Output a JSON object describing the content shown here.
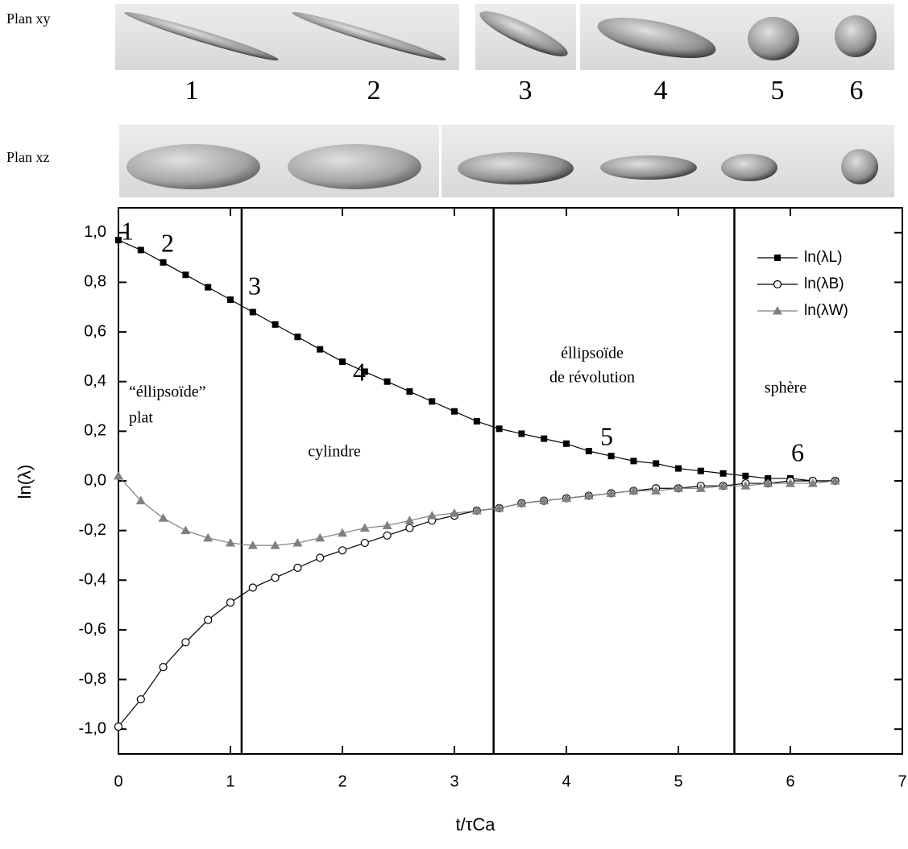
{
  "panels": {
    "rows": [
      "Plan xy",
      "Plan xz"
    ],
    "numbers": [
      "1",
      "2",
      "3",
      "4",
      "5",
      "6"
    ]
  },
  "chart_data": {
    "type": "scatter",
    "xlabel": "t/τCa",
    "ylabel": "ln(λ)",
    "xlim": [
      0,
      7
    ],
    "ylim": [
      -1.1,
      1.1
    ],
    "xticks": [
      0,
      1,
      2,
      3,
      4,
      5,
      6,
      7
    ],
    "yticks": [
      {
        "value": 1.0,
        "label": "1,0"
      },
      {
        "value": 0.8,
        "label": "0,8"
      },
      {
        "value": 0.6,
        "label": "0,6"
      },
      {
        "value": 0.4,
        "label": "0,4"
      },
      {
        "value": 0.2,
        "label": "0,2"
      },
      {
        "value": 0.0,
        "label": "0,0"
      },
      {
        "value": -0.2,
        "label": "-0,2"
      },
      {
        "value": -0.4,
        "label": "-0,4"
      },
      {
        "value": -0.6,
        "label": "-0,6"
      },
      {
        "value": -0.8,
        "label": "-0,8"
      },
      {
        "value": -1.0,
        "label": "-1,0"
      }
    ],
    "boundaries": [
      1.1,
      3.35,
      5.5
    ],
    "region_labels": [
      "“éllipsoïde”",
      "plat",
      "cylindre",
      "éllipsoïde",
      "de révolution",
      "sphère"
    ],
    "point_labels": [
      "1",
      "2",
      "3",
      "4",
      "5",
      "6"
    ],
    "legend": "upper right",
    "x": [
      0,
      0.2,
      0.4,
      0.6,
      0.8,
      1.0,
      1.2,
      1.4,
      1.6,
      1.8,
      2.0,
      2.2,
      2.4,
      2.6,
      2.8,
      3.0,
      3.2,
      3.4,
      3.6,
      3.8,
      4.0,
      4.2,
      4.4,
      4.6,
      4.8,
      5.0,
      5.2,
      5.4,
      5.6,
      5.8,
      6.0,
      6.2,
      6.4
    ],
    "series": [
      {
        "name": "ln(λL)",
        "color": "#000000",
        "marker": "square",
        "values": [
          0.97,
          0.93,
          0.88,
          0.83,
          0.78,
          0.73,
          0.68,
          0.63,
          0.58,
          0.53,
          0.48,
          0.44,
          0.4,
          0.36,
          0.32,
          0.28,
          0.24,
          0.21,
          0.19,
          0.17,
          0.15,
          0.12,
          0.1,
          0.08,
          0.07,
          0.05,
          0.04,
          0.03,
          0.02,
          0.01,
          0.01,
          0.0,
          0.0
        ]
      },
      {
        "name": "ln(λB)",
        "color": "#000000",
        "marker": "circle",
        "values": [
          -0.99,
          -0.88,
          -0.75,
          -0.65,
          -0.56,
          -0.49,
          -0.43,
          -0.39,
          -0.35,
          -0.31,
          -0.28,
          -0.25,
          -0.22,
          -0.19,
          -0.16,
          -0.14,
          -0.12,
          -0.11,
          -0.09,
          -0.08,
          -0.07,
          -0.06,
          -0.05,
          -0.04,
          -0.03,
          -0.03,
          -0.02,
          -0.02,
          -0.01,
          -0.01,
          0.0,
          0.0,
          0.0
        ]
      },
      {
        "name": "ln(λW)",
        "color": "#808080",
        "marker": "triangle",
        "values": [
          0.02,
          -0.08,
          -0.15,
          -0.2,
          -0.23,
          -0.25,
          -0.26,
          -0.26,
          -0.25,
          -0.23,
          -0.21,
          -0.19,
          -0.18,
          -0.16,
          -0.14,
          -0.13,
          -0.12,
          -0.11,
          -0.09,
          -0.08,
          -0.07,
          -0.06,
          -0.05,
          -0.04,
          -0.04,
          -0.03,
          -0.03,
          -0.02,
          -0.02,
          -0.01,
          -0.01,
          -0.01,
          0.0
        ]
      }
    ]
  }
}
